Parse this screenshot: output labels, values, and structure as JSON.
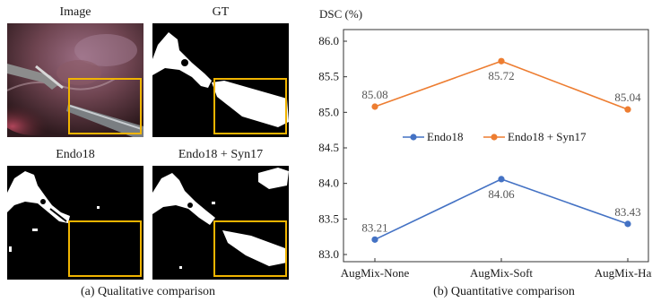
{
  "left_panel": {
    "labels": {
      "image": "Image",
      "gt": "GT",
      "endo18": "Endo18",
      "endo18_syn17": "Endo18 + Syn17"
    },
    "caption": "(a) Qualitative comparison"
  },
  "right_panel": {
    "caption": "(b) Quantitative comparison"
  },
  "colors": {
    "endo18": "#4472C4",
    "endo18_syn17": "#ED7D31",
    "highlight_box": "#F0B400"
  },
  "chart_data": {
    "type": "line",
    "title": "",
    "ylabel": "DSC (%)",
    "xlabel": "",
    "categories": [
      "AugMix-None",
      "AugMix-Soft",
      "AugMix-Hard"
    ],
    "ylim": [
      83.0,
      86.0
    ],
    "yticks": [
      "83.0",
      "83.5",
      "84.0",
      "84.5",
      "85.0",
      "85.5",
      "86.0"
    ],
    "grid": false,
    "legend_position": "center",
    "series": [
      {
        "name": "Endo18",
        "values": [
          83.21,
          84.06,
          83.43
        ],
        "labels": [
          "83.21",
          "84.06",
          "83.43"
        ]
      },
      {
        "name": "Endo18 + Syn17",
        "values": [
          85.08,
          85.72,
          85.04
        ],
        "labels": [
          "85.08",
          "85.72",
          "85.04"
        ]
      }
    ]
  }
}
